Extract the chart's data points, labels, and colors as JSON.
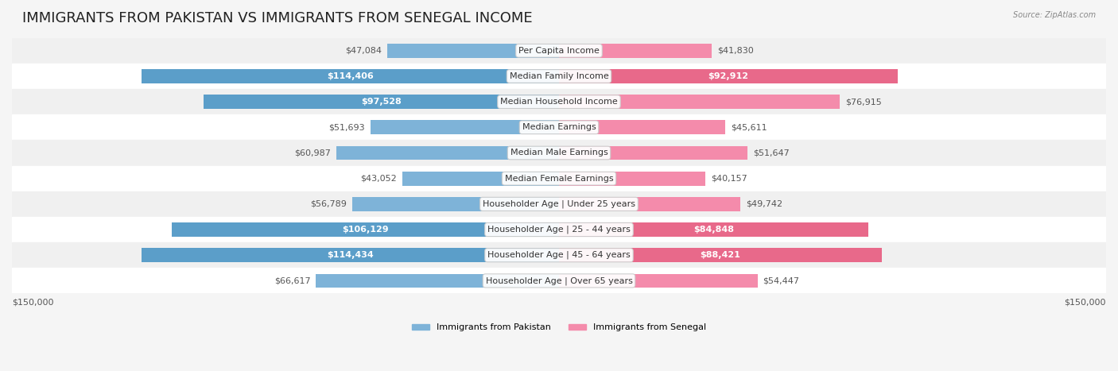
{
  "title": "IMMIGRANTS FROM PAKISTAN VS IMMIGRANTS FROM SENEGAL INCOME",
  "source": "Source: ZipAtlas.com",
  "categories": [
    "Per Capita Income",
    "Median Family Income",
    "Median Household Income",
    "Median Earnings",
    "Median Male Earnings",
    "Median Female Earnings",
    "Householder Age | Under 25 years",
    "Householder Age | 25 - 44 years",
    "Householder Age | 45 - 64 years",
    "Householder Age | Over 65 years"
  ],
  "pakistan_values": [
    47084,
    114406,
    97528,
    51693,
    60987,
    43052,
    56789,
    106129,
    114434,
    66617
  ],
  "senegal_values": [
    41830,
    92912,
    76915,
    45611,
    51647,
    40157,
    49742,
    84848,
    88421,
    54447
  ],
  "pakistan_labels": [
    "$47,084",
    "$114,406",
    "$97,528",
    "$51,693",
    "$60,987",
    "$43,052",
    "$56,789",
    "$106,129",
    "$114,434",
    "$66,617"
  ],
  "senegal_labels": [
    "$41,830",
    "$92,912",
    "$76,915",
    "$45,611",
    "$51,647",
    "$40,157",
    "$49,742",
    "$84,848",
    "$88,421",
    "$54,447"
  ],
  "pakistan_color": "#7EB3D8",
  "senegal_color": "#F48BAB",
  "pakistan_color_strong": "#5B9EC9",
  "senegal_color_strong": "#E8698A",
  "bar_height": 0.55,
  "max_value": 150000,
  "x_label_left": "$150,000",
  "x_label_right": "$150,000",
  "legend_pakistan": "Immigrants from Pakistan",
  "legend_senegal": "Immigrants from Senegal",
  "background_color": "#f5f5f5",
  "row_bg_light": "#ffffff",
  "row_bg_dark": "#eeeeee",
  "title_fontsize": 13,
  "label_fontsize": 8,
  "category_fontsize": 8
}
